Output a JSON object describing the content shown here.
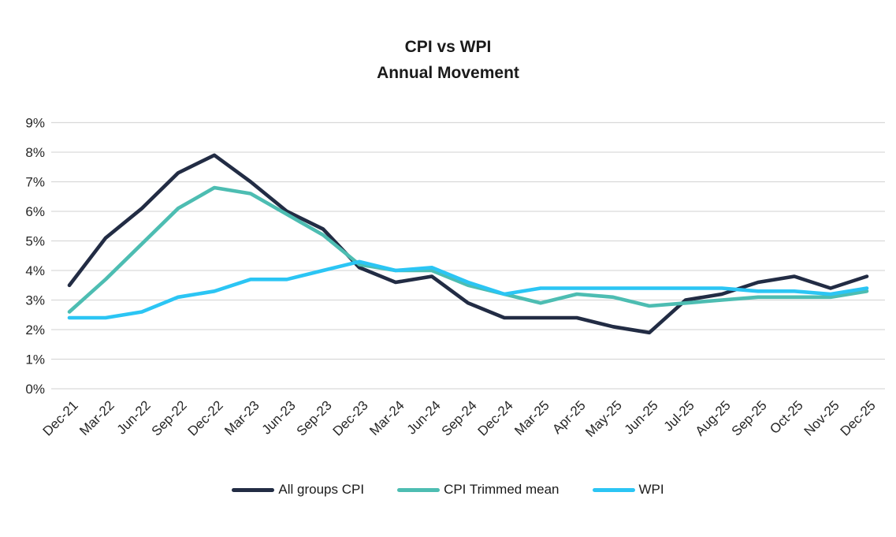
{
  "title": {
    "line1": "CPI vs WPI",
    "line2": "Annual Movement"
  },
  "chart_data": {
    "type": "line",
    "title": "CPI vs WPI",
    "subtitle": "Annual Movement",
    "categories": [
      "Dec-21",
      "Mar-22",
      "Jun-22",
      "Sep-22",
      "Dec-22",
      "Mar-23",
      "Jun-23",
      "Sep-23",
      "Dec-23",
      "Mar-24",
      "Jun-24",
      "Sep-24",
      "Dec-24",
      "Mar-25",
      "Apr-25",
      "May-25",
      "Jun-25",
      "Jul-25",
      "Aug-25",
      "Sep-25",
      "Oct-25",
      "Nov-25",
      "Dec-25"
    ],
    "series": [
      {
        "name": "All groups CPI",
        "color": "#222C44",
        "values": [
          3.5,
          5.1,
          6.1,
          7.3,
          7.9,
          7.0,
          6.0,
          5.4,
          4.1,
          3.6,
          3.8,
          2.9,
          2.4,
          2.4,
          2.4,
          2.1,
          1.9,
          3.0,
          3.2,
          3.6,
          3.8,
          3.4,
          3.8
        ]
      },
      {
        "name": "CPI Trimmed mean",
        "color": "#4DBDB2",
        "values": [
          2.6,
          3.7,
          4.9,
          6.1,
          6.8,
          6.6,
          5.9,
          5.2,
          4.2,
          4.0,
          4.0,
          3.5,
          3.2,
          2.9,
          3.2,
          3.1,
          2.8,
          2.9,
          3.0,
          3.1,
          3.1,
          3.1,
          3.3
        ]
      },
      {
        "name": "WPI",
        "color": "#2BC5F4",
        "values": [
          2.4,
          2.4,
          2.6,
          3.1,
          3.3,
          3.7,
          3.7,
          4.0,
          4.3,
          4.0,
          4.1,
          3.6,
          3.2,
          3.4,
          3.4,
          3.4,
          3.4,
          3.4,
          3.4,
          3.3,
          3.3,
          3.2,
          3.4
        ]
      }
    ],
    "y_axis": {
      "min": 0,
      "max": 9,
      "tick_step": 1,
      "tick_labels": [
        "0%",
        "1%",
        "2%",
        "3%",
        "4%",
        "5%",
        "6%",
        "7%",
        "8%",
        "9%"
      ]
    },
    "grid": true,
    "legend_position": "bottom",
    "colors": {
      "gridline": "#D9D9D9",
      "axis_text": "#262626",
      "title_text": "#1A1A1A",
      "background": "#FFFFFF"
    }
  }
}
